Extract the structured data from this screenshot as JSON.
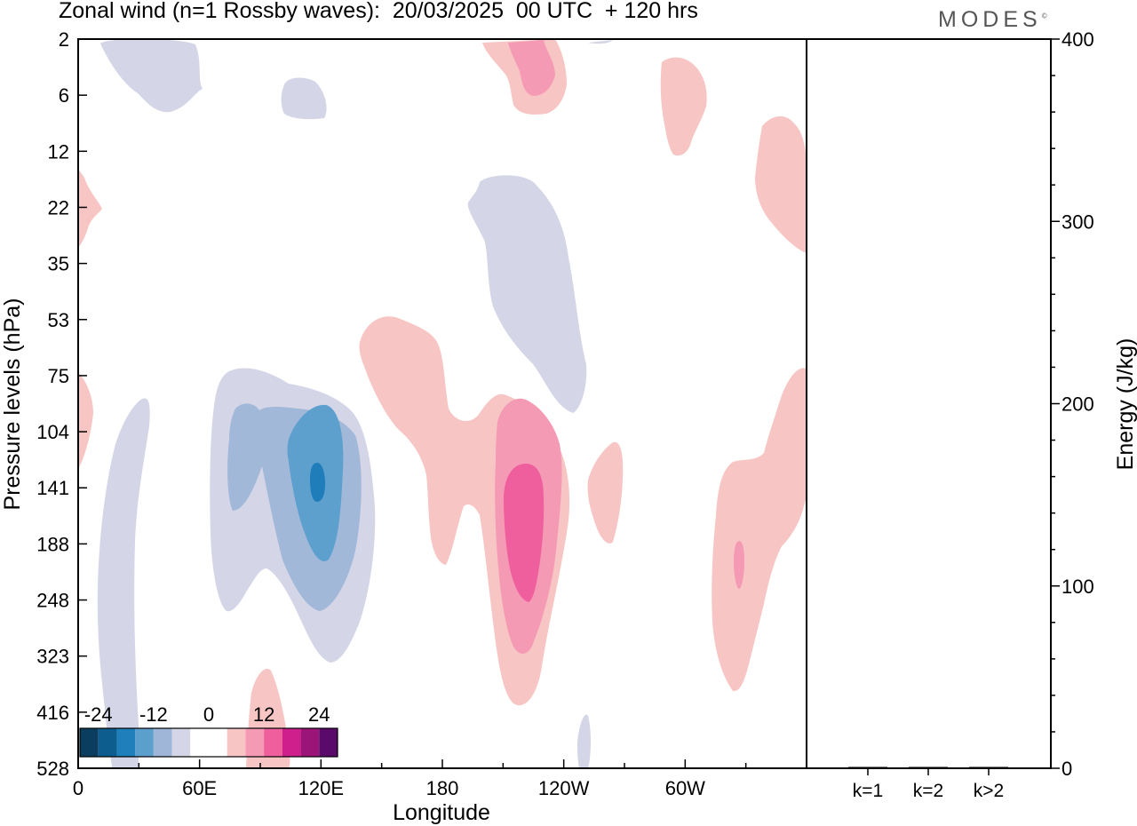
{
  "header": {
    "title": "Zonal wind (n=1 Rossby waves):  20/03/2025  00 UTC  + 120 hrs",
    "brand": "MODES",
    "brand_mark": "©"
  },
  "chart_data": [
    {
      "type": "heatmap",
      "title": "Zonal wind (n=1 Rossby waves):  20/03/2025  00 UTC  + 120 hrs",
      "xlabel": "Longitude",
      "ylabel": "Pressure levels (hPa)",
      "x_ticks": [
        "0",
        "60E",
        "120E",
        "180",
        "120W",
        "60W"
      ],
      "x_tick_degrees": [
        0,
        60,
        120,
        180,
        240,
        300
      ],
      "xlim": [
        0,
        360
      ],
      "y_ticks": [
        "2",
        "6",
        "12",
        "22",
        "35",
        "53",
        "75",
        "104",
        "141",
        "188",
        "248",
        "323",
        "416",
        "528"
      ],
      "y_scale": "pressure levels (top 2 hPa, bottom 528 hPa)",
      "colorbar": {
        "tick_labels": [
          "-24",
          "-12",
          "0",
          "12",
          "24"
        ],
        "tick_values": [
          -24,
          -12,
          0,
          12,
          24
        ],
        "range": [
          -28,
          28
        ],
        "colors": [
          "#0b3d5e",
          "#0d5d8f",
          "#1e7fbb",
          "#5b9fcc",
          "#9fb6d8",
          "#d4d6e8",
          "#ffffff",
          "#ffffff",
          "#f7c6c4",
          "#f59ab4",
          "#ef5f9e",
          "#cf1f8c",
          "#9b1477",
          "#5a0a6a"
        ]
      },
      "contours": [
        {
          "region": "60E-120E upper-mid troposphere",
          "lon_range": [
            65,
            140
          ],
          "level_range": [
            "75",
            "323"
          ],
          "min_value": -20,
          "sign": "negative"
        },
        {
          "region": "near 20E lower levels",
          "lon_range": [
            10,
            35
          ],
          "level_range": [
            "104",
            "528"
          ],
          "min_value": -4,
          "sign": "negative"
        },
        {
          "region": "near 175E-115W upper levels",
          "lon_range": [
            193,
            250
          ],
          "level_range": [
            "17",
            "98"
          ],
          "min_value": -4,
          "sign": "negative"
        },
        {
          "region": "near 110W",
          "lon_range": [
            200,
            250
          ],
          "level_range": [
            "90",
            "410"
          ],
          "max_value": 12,
          "sign": "positive"
        },
        {
          "region": "near 145E-180",
          "lon_range": [
            140,
            200
          ],
          "level_range": [
            "50",
            "170"
          ],
          "max_value": 4,
          "sign": "positive"
        },
        {
          "region": "near 30W-0",
          "lon_range": [
            320,
            360
          ],
          "level_range": [
            "75",
            "370"
          ],
          "max_value": 8,
          "sign": "positive"
        },
        {
          "region": "near 90E lowest levels",
          "lon_range": [
            85,
            105
          ],
          "level_range": [
            "290",
            "528"
          ],
          "max_value": 4,
          "sign": "positive"
        }
      ]
    },
    {
      "type": "bar",
      "categories": [
        "k=1",
        "k=2",
        "k>2"
      ],
      "values": [
        0.5,
        0.3,
        0.4
      ],
      "ylabel": "Energy (J/kg)",
      "y_ticks": [
        "0",
        "100",
        "200",
        "300",
        "400"
      ],
      "ylim": [
        0,
        400
      ]
    }
  ],
  "colors": {
    "negative_weak": "#d4d6e8",
    "negative_mid": "#a2b8d9",
    "negative_strong": "#5ea0cd",
    "negative_core": "#1f7db9",
    "positive_weak": "#f7c6c4",
    "positive_mid": "#f59ab4",
    "positive_strong": "#ef5f9e"
  }
}
